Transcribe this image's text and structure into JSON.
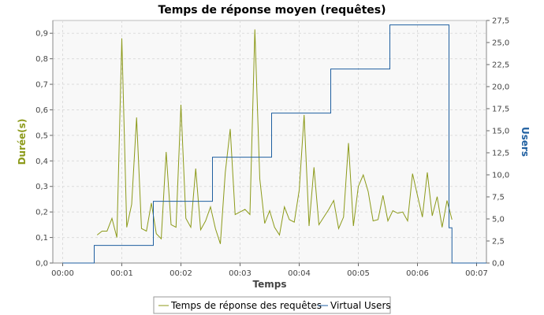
{
  "chart_data": {
    "type": "line",
    "title": "Temps de réponse moyen (requêtes)",
    "xlabel": "Temps",
    "ylabel_left": "Durée(s)",
    "ylabel_right": "Users",
    "x_ticks": [
      "00:00",
      "00:01",
      "00:02",
      "00:03",
      "00:04",
      "00:05",
      "00:06",
      "00:07"
    ],
    "y_left_ticks": [
      "0,0",
      "0,1",
      "0,2",
      "0,3",
      "0,4",
      "0,5",
      "0,6",
      "0,7",
      "0,8",
      "0,9"
    ],
    "y_right_ticks": [
      "0,0",
      "2,5",
      "5,0",
      "7,5",
      "10,0",
      "12,5",
      "15,0",
      "17,5",
      "20,0",
      "22,5",
      "25,0",
      "27,5"
    ],
    "x_range_seconds": [
      -10,
      430
    ],
    "y_left_range": [
      0,
      0.95
    ],
    "y_right_range": [
      0,
      27.5
    ],
    "grid": true,
    "legend_position": "bottom",
    "colors": {
      "response": "#8c9a1a",
      "users": "#1f5fa0",
      "ylabel_left": "#8c9a1a",
      "ylabel_right": "#1f5fa0",
      "plot_bg": "#f8f8f8",
      "grid": "#dcdcdc"
    },
    "series": [
      {
        "name": "Temps de réponse des requêtes",
        "x": [
          35,
          40,
          45,
          50,
          55,
          60,
          65,
          70,
          75,
          80,
          85,
          90,
          95,
          100,
          105,
          110,
          115,
          120,
          125,
          130,
          135,
          140,
          145,
          150,
          155,
          160,
          165,
          170,
          175,
          180,
          185,
          190,
          195,
          200,
          205,
          210,
          215,
          220,
          225,
          230,
          235,
          240,
          245,
          250,
          255,
          260,
          265,
          270,
          275,
          280,
          285,
          290,
          295,
          300,
          305,
          310,
          315,
          320,
          325,
          330,
          335,
          340,
          345,
          350,
          355,
          360,
          365,
          370,
          375,
          380,
          385,
          390,
          395
        ],
        "y": [
          0.11,
          0.125,
          0.125,
          0.175,
          0.1,
          0.88,
          0.14,
          0.23,
          0.57,
          0.135,
          0.125,
          0.235,
          0.115,
          0.095,
          0.435,
          0.15,
          0.14,
          0.62,
          0.175,
          0.14,
          0.37,
          0.13,
          0.165,
          0.22,
          0.135,
          0.075,
          0.355,
          0.525,
          0.19,
          0.2,
          0.21,
          0.19,
          0.915,
          0.33,
          0.155,
          0.205,
          0.14,
          0.11,
          0.22,
          0.17,
          0.16,
          0.285,
          0.58,
          0.145,
          0.375,
          0.15,
          0.18,
          0.21,
          0.245,
          0.135,
          0.18,
          0.47,
          0.145,
          0.3,
          0.345,
          0.28,
          0.165,
          0.17,
          0.265,
          0.165,
          0.205,
          0.195,
          0.2,
          0.165,
          0.35,
          0.265,
          0.18,
          0.355,
          0.185,
          0.26,
          0.14,
          0.245,
          0.17
        ]
      },
      {
        "name": "Virtual Users",
        "x": [
          0,
          32,
          32,
          92,
          92,
          152,
          152,
          212,
          212,
          272,
          272,
          332,
          332,
          392,
          392,
          395,
          395,
          430
        ],
        "y": [
          0,
          0,
          2,
          2,
          7,
          7,
          12,
          12,
          17,
          17,
          22,
          22,
          27,
          27,
          4,
          4,
          0,
          0
        ]
      }
    ]
  }
}
